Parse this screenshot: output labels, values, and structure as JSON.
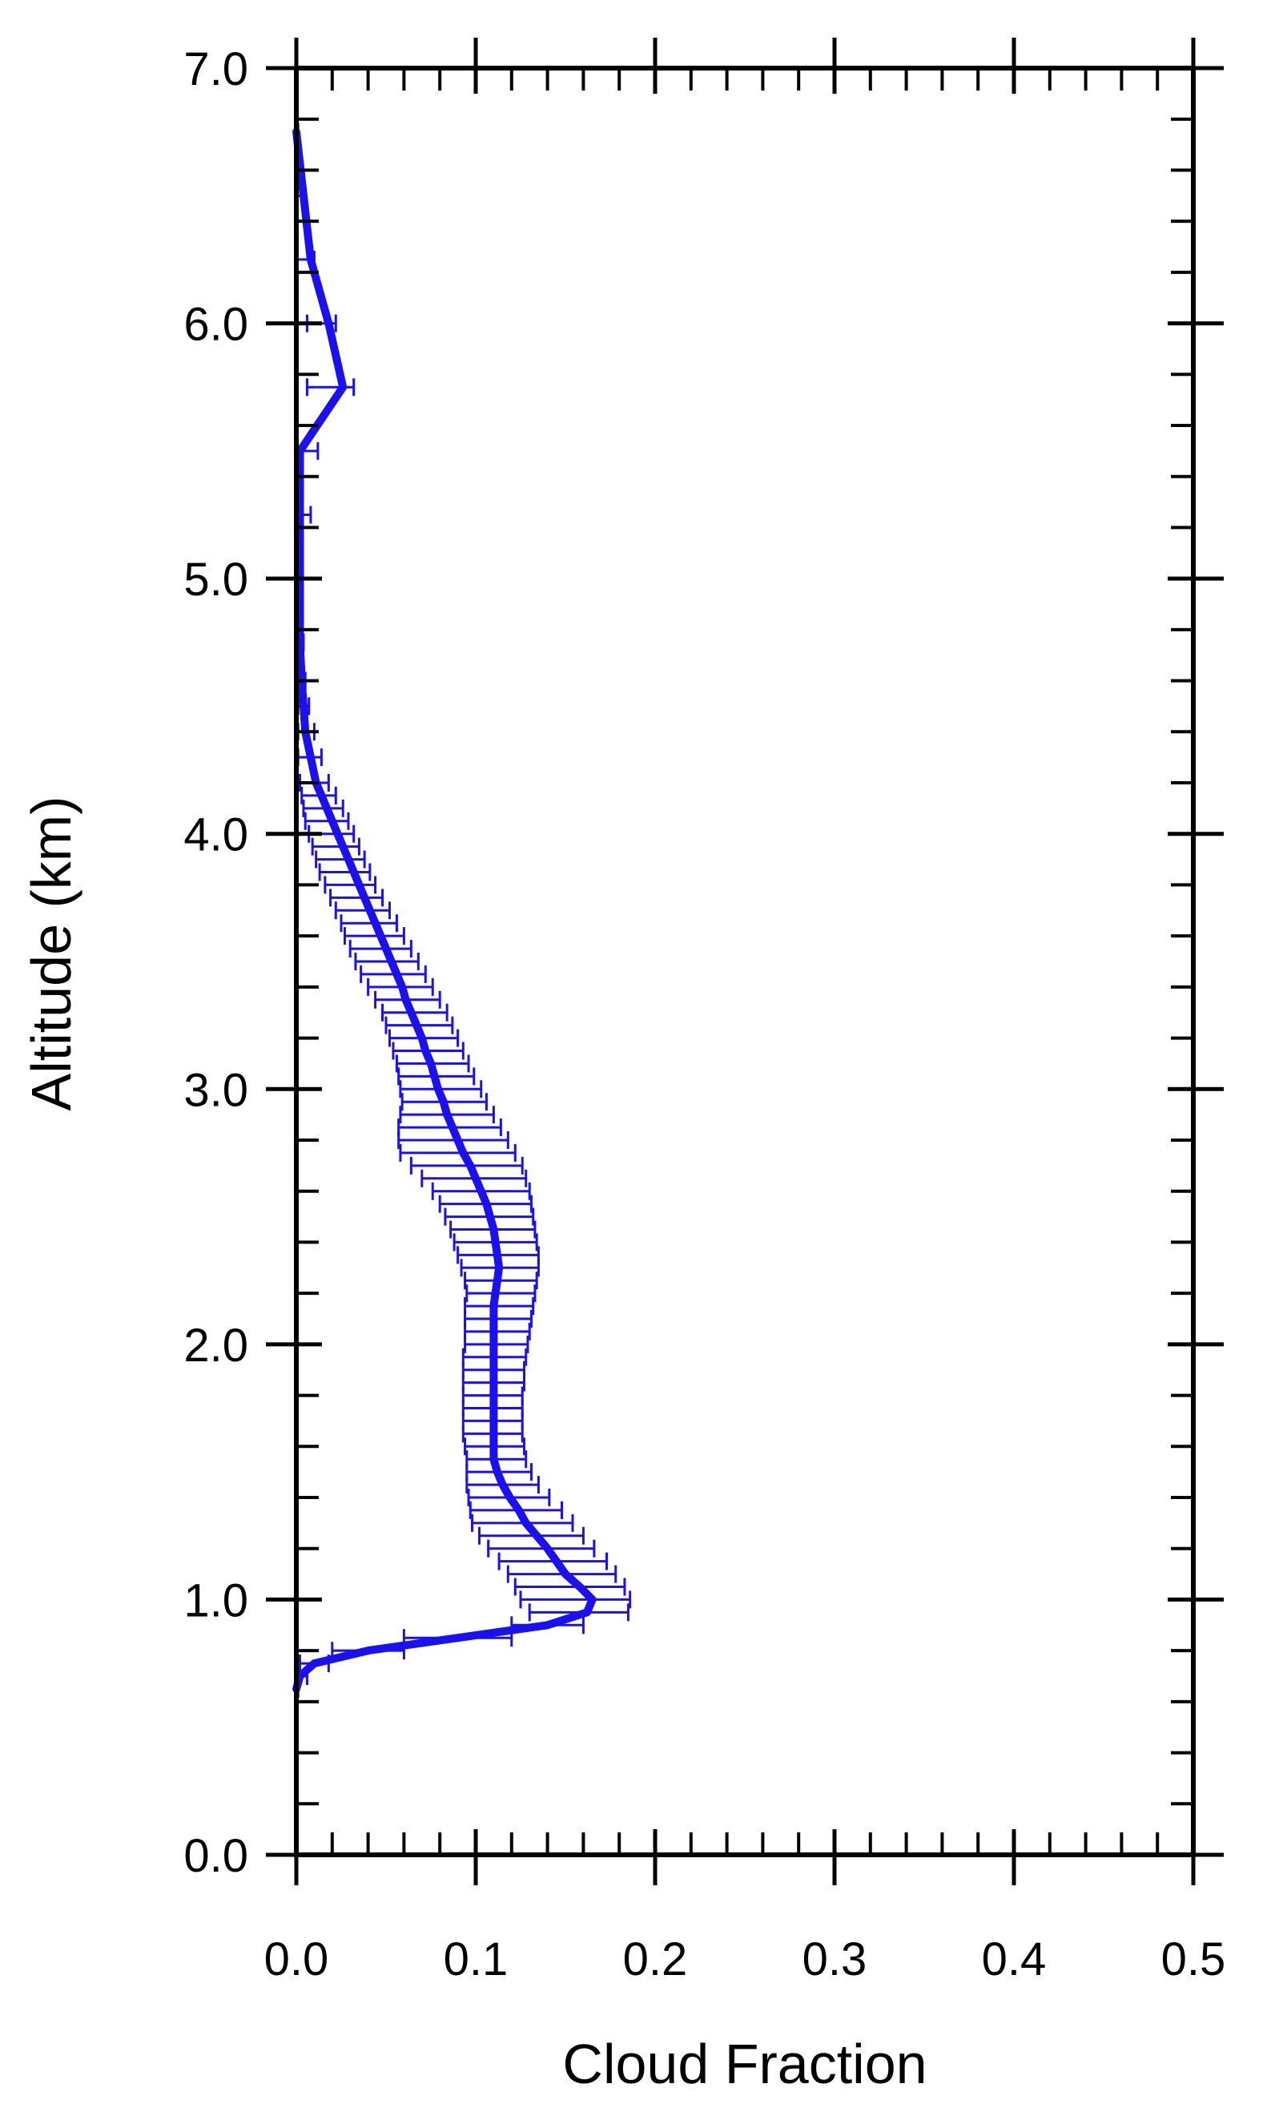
{
  "chart_data": {
    "type": "line",
    "xlabel": "Cloud Fraction",
    "ylabel": "Altitude (km)",
    "xlim": [
      0.0,
      0.5
    ],
    "ylim": [
      0.0,
      7.0
    ],
    "x_ticks": [
      "0.0",
      "0.1",
      "0.2",
      "0.3",
      "0.4",
      "0.5"
    ],
    "y_ticks": [
      "0.0",
      "1.0",
      "2.0",
      "3.0",
      "4.0",
      "5.0",
      "6.0",
      "7.0"
    ],
    "x_tick_values": [
      0.0,
      0.1,
      0.2,
      0.3,
      0.4,
      0.5
    ],
    "y_tick_values": [
      0,
      1,
      2,
      3,
      4,
      5,
      6,
      7
    ],
    "x_minor_step": 0.02,
    "y_minor_step": 0.2,
    "grid": false,
    "color": "#1a10f0",
    "series": [
      {
        "altitude": [
          0.65,
          0.7,
          0.75,
          0.8,
          0.85,
          0.9,
          0.95,
          1.0,
          1.05,
          1.1,
          1.15,
          1.2,
          1.25,
          1.3,
          1.35,
          1.4,
          1.45,
          1.5,
          1.55,
          1.6,
          1.65,
          1.7,
          1.75,
          1.8,
          1.85,
          1.9,
          1.95,
          2.0,
          2.05,
          2.1,
          2.15,
          2.2,
          2.25,
          2.3,
          2.35,
          2.4,
          2.45,
          2.5,
          2.55,
          2.6,
          2.65,
          2.7,
          2.75,
          2.8,
          2.85,
          2.9,
          2.95,
          3.0,
          3.05,
          3.1,
          3.15,
          3.2,
          3.25,
          3.3,
          3.35,
          3.4,
          3.45,
          3.5,
          3.55,
          3.6,
          3.65,
          3.7,
          3.75,
          3.8,
          3.85,
          3.9,
          3.95,
          4.0,
          4.05,
          4.1,
          4.15,
          4.2,
          4.3,
          4.4,
          4.5,
          4.6,
          4.75,
          5.0,
          5.25,
          5.5,
          5.75,
          6.0,
          6.25,
          6.5,
          6.75
        ],
        "cloud_fraction": [
          0.0,
          0.002,
          0.01,
          0.04,
          0.09,
          0.14,
          0.162,
          0.165,
          0.158,
          0.15,
          0.145,
          0.14,
          0.134,
          0.128,
          0.124,
          0.119,
          0.115,
          0.112,
          0.11,
          0.11,
          0.11,
          0.11,
          0.11,
          0.11,
          0.11,
          0.11,
          0.11,
          0.11,
          0.11,
          0.11,
          0.11,
          0.111,
          0.112,
          0.113,
          0.112,
          0.111,
          0.11,
          0.108,
          0.106,
          0.103,
          0.1,
          0.097,
          0.093,
          0.09,
          0.087,
          0.084,
          0.082,
          0.079,
          0.077,
          0.075,
          0.072,
          0.07,
          0.067,
          0.064,
          0.061,
          0.059,
          0.056,
          0.053,
          0.05,
          0.047,
          0.044,
          0.041,
          0.038,
          0.035,
          0.032,
          0.029,
          0.026,
          0.023,
          0.02,
          0.017,
          0.014,
          0.011,
          0.008,
          0.005,
          0.004,
          0.003,
          0.002,
          0.002,
          0.002,
          0.002,
          0.026,
          0.018,
          0.008,
          0.004,
          0.0
        ],
        "error_low": [
          0.0,
          0.0,
          0.002,
          0.02,
          0.06,
          0.12,
          0.13,
          0.125,
          0.122,
          0.118,
          0.113,
          0.107,
          0.102,
          0.098,
          0.097,
          0.096,
          0.095,
          0.095,
          0.095,
          0.094,
          0.093,
          0.093,
          0.093,
          0.093,
          0.093,
          0.093,
          0.093,
          0.094,
          0.094,
          0.094,
          0.094,
          0.095,
          0.094,
          0.092,
          0.09,
          0.088,
          0.086,
          0.083,
          0.08,
          0.076,
          0.07,
          0.064,
          0.058,
          0.057,
          0.057,
          0.058,
          0.059,
          0.058,
          0.057,
          0.056,
          0.054,
          0.052,
          0.05,
          0.048,
          0.044,
          0.04,
          0.036,
          0.033,
          0.03,
          0.027,
          0.025,
          0.022,
          0.019,
          0.016,
          0.013,
          0.011,
          0.009,
          0.007,
          0.005,
          0.004,
          0.003,
          0.002,
          0.001,
          0.001,
          0.001,
          0.0,
          0.0,
          0.0,
          0.0,
          0.0,
          0.006,
          0.006,
          0.0,
          0.0,
          0.0
        ],
        "error_high": [
          0.001,
          0.006,
          0.018,
          0.06,
          0.12,
          0.16,
          0.185,
          0.186,
          0.183,
          0.178,
          0.173,
          0.166,
          0.16,
          0.154,
          0.148,
          0.141,
          0.135,
          0.131,
          0.128,
          0.127,
          0.126,
          0.126,
          0.126,
          0.126,
          0.127,
          0.127,
          0.128,
          0.129,
          0.13,
          0.131,
          0.132,
          0.133,
          0.134,
          0.135,
          0.135,
          0.134,
          0.133,
          0.132,
          0.131,
          0.13,
          0.128,
          0.126,
          0.122,
          0.118,
          0.114,
          0.11,
          0.106,
          0.103,
          0.099,
          0.096,
          0.093,
          0.09,
          0.087,
          0.084,
          0.08,
          0.076,
          0.072,
          0.068,
          0.064,
          0.06,
          0.056,
          0.052,
          0.048,
          0.044,
          0.041,
          0.038,
          0.035,
          0.032,
          0.029,
          0.026,
          0.022,
          0.018,
          0.014,
          0.01,
          0.007,
          0.005,
          0.004,
          0.003,
          0.008,
          0.012,
          0.032,
          0.022,
          0.01,
          0.005,
          0.001
        ]
      }
    ]
  }
}
